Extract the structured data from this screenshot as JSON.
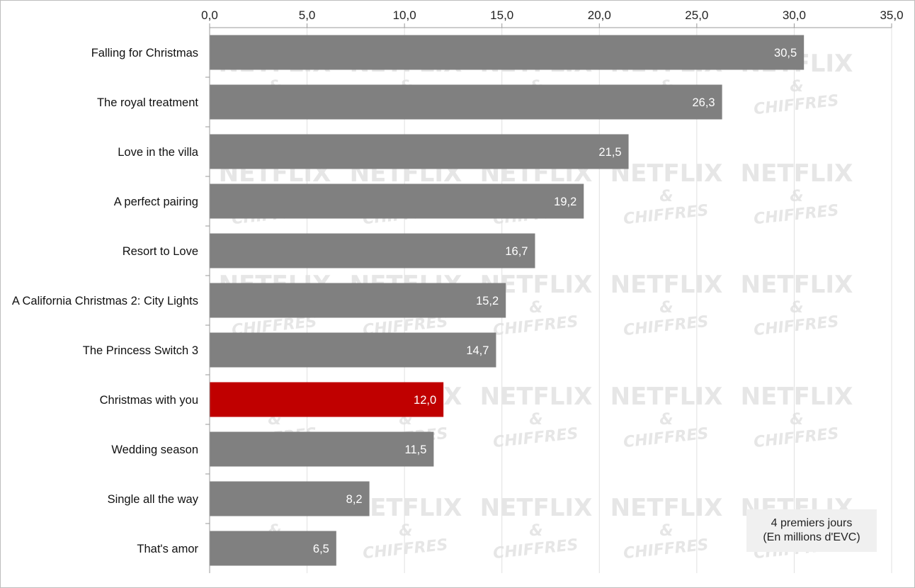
{
  "chart_data": {
    "type": "bar",
    "orientation": "horizontal",
    "categories": [
      "Falling for Christmas",
      "The royal treatment",
      "Love in the villa",
      "A perfect pairing",
      "Resort to Love",
      "A California Christmas 2: City Lights",
      "The Princess Switch 3",
      "Christmas with you",
      "Wedding season",
      "Single all the way",
      "That's amor"
    ],
    "values": [
      30.5,
      26.3,
      21.5,
      19.2,
      16.7,
      15.2,
      14.7,
      12.0,
      11.5,
      8.2,
      6.5
    ],
    "value_labels": [
      "30,5",
      "26,3",
      "21,5",
      "19,2",
      "16,7",
      "15,2",
      "14,7",
      "12,0",
      "11,5",
      "8,2",
      "6,5"
    ],
    "highlight_category": "Christmas with you",
    "xlim": [
      0,
      35
    ],
    "x_ticks": [
      0,
      5,
      10,
      15,
      20,
      25,
      30,
      35
    ],
    "x_tick_labels": [
      "0,0",
      "5,0",
      "10,0",
      "15,0",
      "20,0",
      "25,0",
      "30,0",
      "35,0"
    ],
    "x_axis_position": "top",
    "grid": true,
    "colors": {
      "bar": "#808080",
      "highlight": "#c00000",
      "grid": "#e0e0e0",
      "value_text": "#ffffff"
    }
  },
  "legend_note": {
    "line1": "4 premiers jours",
    "line2": "(En millions d'EVC)"
  },
  "watermark": {
    "line1": "NETFLIX",
    "line2": "&",
    "line3": "CHIFFRES"
  }
}
